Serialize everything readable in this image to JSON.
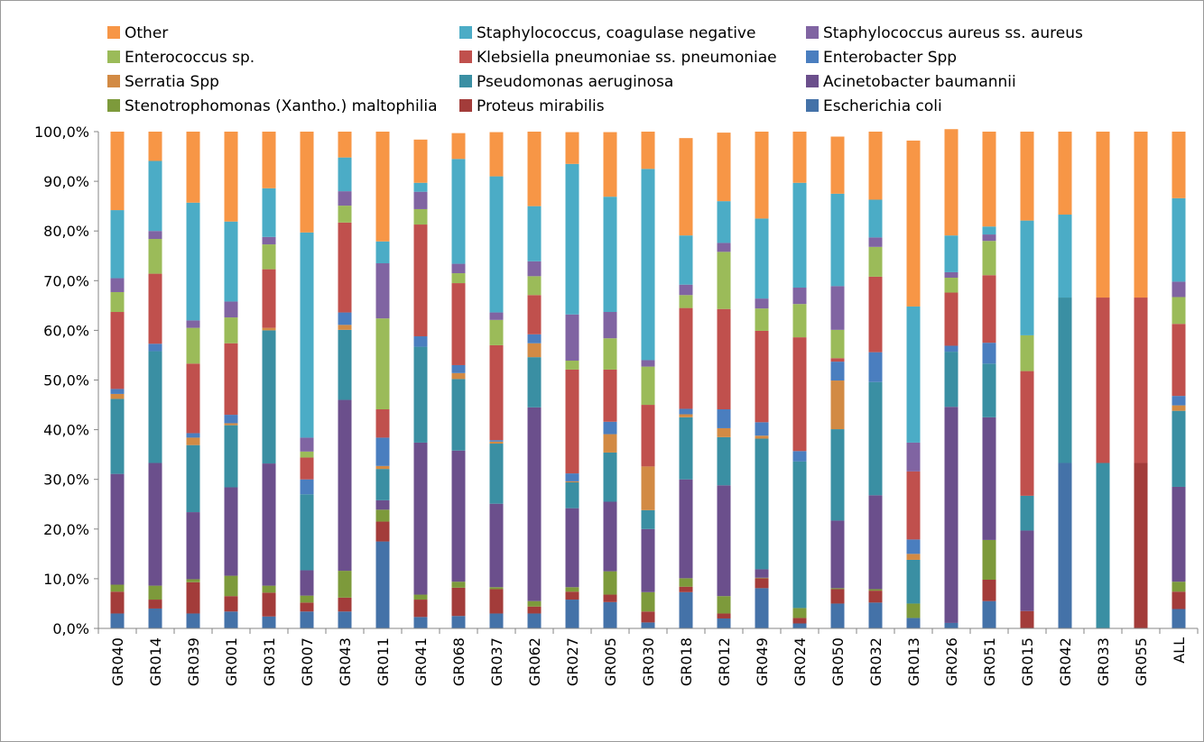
{
  "chart_data": {
    "type": "bar",
    "stacked": true,
    "percent": true,
    "y_range": [
      0,
      100
    ],
    "y_ticks": [
      "0,0%",
      "10,0%",
      "20,0%",
      "30,0%",
      "40,0%",
      "50,0%",
      "60,0%",
      "70,0%",
      "80,0%",
      "90,0%",
      "100,0%"
    ],
    "x_axis": "categories rotated vertically",
    "legend_position": "top",
    "gridlines": "none",
    "categories": [
      "GR040",
      "GR014",
      "GR039",
      "GR001",
      "GR031",
      "GR007",
      "GR043",
      "GR011",
      "GR041",
      "GR068",
      "GR037",
      "GR062",
      "GR027",
      "GR005",
      "GR030",
      "GR018",
      "GR012",
      "GR049",
      "GR024",
      "GR050",
      "GR032",
      "GR013",
      "GR026",
      "GR051",
      "GR015",
      "GR042",
      "GR033",
      "GR055",
      "ALL"
    ],
    "legend_order": [
      11,
      10,
      9,
      8,
      7,
      6,
      5,
      4,
      3,
      2,
      1,
      0
    ],
    "series": [
      {
        "name": "Escherichia coli",
        "color": "#4472a8",
        "values": [
          3.0,
          4.0,
          3.0,
          3.4,
          2.4,
          3.4,
          3.4,
          17.5,
          2.3,
          2.5,
          3.0,
          3.0,
          5.8,
          5.3,
          1.2,
          7.3,
          2.0,
          8.1,
          1.0,
          5.0,
          5.2,
          2.1,
          1.1,
          5.5,
          0,
          33.3,
          0,
          0,
          3.9
        ]
      },
      {
        "name": "Proteus mirabilis",
        "color": "#a33c3a",
        "values": [
          4.4,
          1.8,
          6.3,
          3.1,
          4.8,
          1.8,
          2.8,
          4.0,
          3.5,
          5.7,
          4.9,
          1.4,
          1.6,
          1.5,
          2.2,
          1.1,
          1.0,
          2.0,
          1.1,
          2.9,
          2.4,
          0,
          0,
          4.3,
          3.5,
          0,
          0,
          33.3,
          3.5
        ]
      },
      {
        "name": "Stenotrophomonas (Xantho.) maltophilia",
        "color": "#7d9a3b",
        "values": [
          1.4,
          2.8,
          0.6,
          4.1,
          1.4,
          1.4,
          5.4,
          2.4,
          1.0,
          1.2,
          0.4,
          1.1,
          0.9,
          4.7,
          3.9,
          1.7,
          3.5,
          0.1,
          2.0,
          0.2,
          0.3,
          2.9,
          0,
          8.0,
          0,
          0,
          0,
          0,
          2.0
        ]
      },
      {
        "name": "Acinetobacter baumannii",
        "color": "#6b4f8c",
        "values": [
          22.3,
          24.7,
          13.5,
          17.8,
          24.6,
          5.1,
          34.4,
          1.9,
          30.6,
          26.4,
          16.8,
          39.0,
          15.9,
          14.0,
          12.7,
          19.9,
          22.3,
          1.7,
          0,
          13.6,
          18.9,
          0,
          43.5,
          24.7,
          16.2,
          0,
          0,
          0,
          19.1
        ]
      },
      {
        "name": "Pseudomonas aeruginosa",
        "color": "#3a8fa3",
        "values": [
          15.1,
          22.5,
          13.5,
          12.5,
          26.8,
          15.3,
          14.1,
          6.3,
          19.3,
          14.4,
          12.1,
          10.1,
          5.2,
          9.9,
          3.8,
          12.5,
          9.7,
          26.3,
          29.5,
          18.4,
          22.8,
          8.8,
          11.1,
          10.8,
          7.0,
          33.3,
          33.3,
          0,
          15.3
        ]
      },
      {
        "name": "Serratia Spp",
        "color": "#d28a44",
        "values": [
          1.0,
          0,
          1.5,
          0.4,
          0.5,
          0,
          1.0,
          0.6,
          0,
          1.2,
          0.4,
          2.8,
          0.2,
          3.7,
          8.8,
          0.6,
          1.8,
          0.6,
          0,
          9.8,
          0,
          1.2,
          0,
          0,
          0,
          0,
          0,
          0,
          1.1
        ]
      },
      {
        "name": "Enterobacter Spp",
        "color": "#4a7ebf",
        "values": [
          1.0,
          1.5,
          0.9,
          1.7,
          0,
          3.0,
          2.5,
          5.7,
          2.1,
          1.6,
          0.3,
          1.8,
          1.6,
          2.5,
          0,
          1.1,
          3.8,
          2.7,
          2.1,
          3.8,
          6.0,
          2.9,
          1.2,
          4.2,
          0,
          0,
          0,
          0,
          1.9
        ]
      },
      {
        "name": "Klebsiella pneumoniae ss. pneumoniae",
        "color": "#c0504d",
        "values": [
          15.5,
          14.1,
          14.0,
          14.4,
          11.8,
          4.4,
          18.1,
          5.7,
          22.5,
          16.5,
          19.1,
          7.9,
          20.9,
          10.5,
          12.4,
          20.3,
          20.2,
          18.4,
          22.9,
          0.7,
          15.2,
          13.7,
          10.7,
          13.6,
          25.1,
          0,
          33.3,
          33.3,
          14.5
        ]
      },
      {
        "name": "Enterococcus sp.",
        "color": "#9bbb59",
        "values": [
          4.0,
          7.0,
          7.2,
          5.2,
          5.0,
          1.2,
          3.4,
          18.3,
          3.1,
          2.0,
          5.1,
          3.8,
          1.8,
          6.3,
          7.7,
          2.6,
          11.5,
          4.5,
          6.7,
          5.7,
          6.0,
          0,
          3.0,
          6.9,
          7.2,
          0,
          0,
          0,
          5.4
        ]
      },
      {
        "name": "Staphylococcus aureus ss. aureus",
        "color": "#8064a2",
        "values": [
          2.8,
          1.6,
          1.5,
          3.2,
          1.5,
          2.8,
          2.9,
          11.1,
          3.5,
          1.9,
          1.5,
          3.0,
          9.3,
          5.3,
          1.3,
          2.1,
          1.8,
          2.0,
          3.3,
          8.8,
          1.9,
          5.8,
          1.1,
          1.3,
          0,
          0,
          0,
          0,
          3.1
        ]
      },
      {
        "name": "Staphylococcus, coagulase negative",
        "color": "#4bacc6",
        "values": [
          13.7,
          14.1,
          23.7,
          16.1,
          9.8,
          41.3,
          6.8,
          4.4,
          1.8,
          21.1,
          27.4,
          11.1,
          30.3,
          23.2,
          38.5,
          9.9,
          8.4,
          16.1,
          21.1,
          18.6,
          7.6,
          27.4,
          7.4,
          1.6,
          23.1,
          16.7,
          0,
          0,
          16.8
        ]
      },
      {
        "name": "Other",
        "color": "#f79646",
        "values": [
          15.8,
          5.9,
          14.3,
          18.1,
          11.4,
          20.3,
          5.2,
          22.1,
          8.7,
          5.2,
          8.9,
          15.0,
          6.4,
          13.0,
          7.5,
          19.6,
          13.8,
          17.5,
          10.3,
          11.5,
          13.7,
          33.4,
          21.4,
          19.1,
          17.9,
          16.7,
          33.4,
          33.4,
          13.4
        ]
      }
    ]
  }
}
